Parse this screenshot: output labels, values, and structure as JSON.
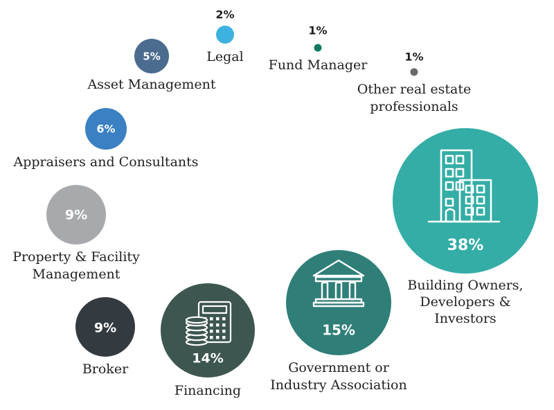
{
  "chart_data": {
    "type": "bubble",
    "title": "",
    "points": [
      {
        "category": "Building Owners, Developers & Investors",
        "label_lines": [
          "Building Owners,",
          "Developers &",
          "Investors"
        ],
        "value": 38,
        "display": "38%",
        "color": "#33ada6",
        "icon": "buildings-icon"
      },
      {
        "category": "Government or Industry Association",
        "label_lines": [
          "Government or",
          "Industry Association"
        ],
        "value": 15,
        "display": "15%",
        "color": "#2f7f78",
        "icon": "government-building-icon"
      },
      {
        "category": "Financing",
        "label_lines": [
          "Financing"
        ],
        "value": 14,
        "display": "14%",
        "color": "#3d5650",
        "icon": "calculator-coins-icon"
      },
      {
        "category": "Broker",
        "label_lines": [
          "Broker"
        ],
        "value": 9,
        "display": "9%",
        "color": "#333a40",
        "icon": ""
      },
      {
        "category": "Property & Facility Management",
        "label_lines": [
          "Property & Facility",
          "Management"
        ],
        "value": 9,
        "display": "9%",
        "color": "#a7a9ac",
        "icon": ""
      },
      {
        "category": "Appraisers and Consultants",
        "label_lines": [
          "Appraisers and Consultants"
        ],
        "value": 6,
        "display": "6%",
        "color": "#3a80c3",
        "icon": ""
      },
      {
        "category": "Asset Management",
        "label_lines": [
          "Asset Management"
        ],
        "value": 5,
        "display": "5%",
        "color": "#4b6b8f",
        "icon": ""
      },
      {
        "category": "Legal",
        "label_lines": [
          "Legal"
        ],
        "value": 2,
        "display": "2%",
        "color": "#3db1e0",
        "icon": ""
      },
      {
        "category": "Fund Manager",
        "label_lines": [
          "Fund Manager"
        ],
        "value": 1,
        "display": "1%",
        "color": "#127a62",
        "icon": ""
      },
      {
        "category": "Other real estate professionals",
        "label_lines": [
          "Other real estate",
          "professionals"
        ],
        "value": 1,
        "display": "1%",
        "color": "#666a6d",
        "icon": ""
      }
    ]
  }
}
